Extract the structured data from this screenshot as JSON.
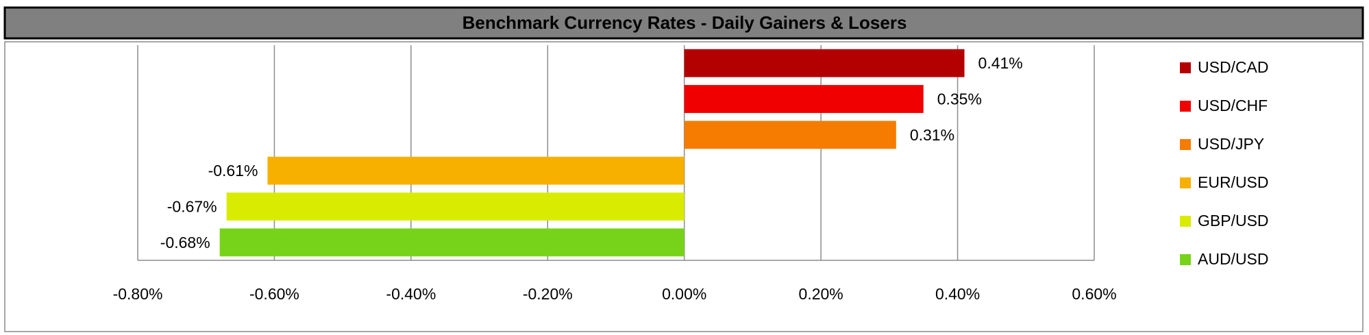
{
  "chart_data": {
    "type": "bar",
    "orientation": "horizontal",
    "title": "Benchmark Currency Rates - Daily Gainers & Losers",
    "categories": [
      "USD/CAD",
      "USD/CHF",
      "USD/JPY",
      "EUR/USD",
      "GBP/USD",
      "AUD/USD"
    ],
    "values": [
      0.41,
      0.35,
      0.31,
      -0.61,
      -0.67,
      -0.68
    ],
    "value_labels": [
      "0.41%",
      "0.35%",
      "0.31%",
      "-0.61%",
      "-0.67%",
      "-0.68%"
    ],
    "colors": [
      "#b30000",
      "#f00000",
      "#f57c00",
      "#f7b000",
      "#d9ec00",
      "#77d31a"
    ],
    "xlim": [
      -0.8,
      0.6
    ],
    "xticks": [
      {
        "value": -0.8,
        "label": "-0.80%"
      },
      {
        "value": -0.6,
        "label": "-0.60%"
      },
      {
        "value": -0.4,
        "label": "-0.40%"
      },
      {
        "value": -0.2,
        "label": "-0.20%"
      },
      {
        "value": 0,
        "label": "0.00%"
      },
      {
        "value": 0.2,
        "label": "0.20%"
      },
      {
        "value": 0.4,
        "label": "0.40%"
      },
      {
        "value": 0.6,
        "label": "0.60%"
      }
    ],
    "grid": true,
    "legend": "right"
  }
}
